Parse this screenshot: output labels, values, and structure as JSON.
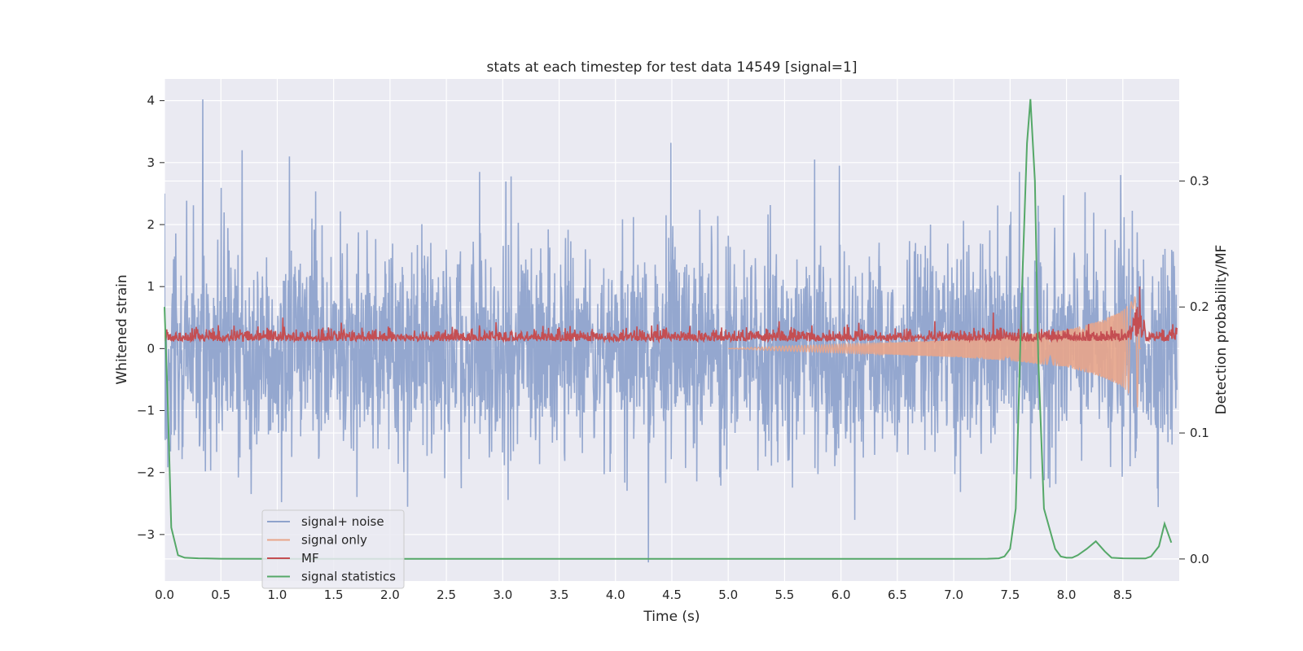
{
  "chart_data": {
    "type": "line",
    "title": "stats at each timestep for test data 14549 [signal=1]",
    "xlabel": "Time (s)",
    "ylabel": "Whitened strain",
    "y2label": "Detection probability/MF",
    "xlim": [
      0,
      9
    ],
    "ylim": [
      -3.75,
      4.35
    ],
    "y2lim": [
      -0.0175,
      0.381
    ],
    "xticks": [
      "0.0",
      "0.5",
      "1.0",
      "1.5",
      "2.0",
      "2.5",
      "3.0",
      "3.5",
      "4.0",
      "4.5",
      "5.0",
      "5.5",
      "6.0",
      "6.5",
      "7.0",
      "7.5",
      "8.0",
      "8.5"
    ],
    "yticks": [
      "−3",
      "−2",
      "−1",
      "0",
      "1",
      "2",
      "3",
      "4"
    ],
    "y2ticks": [
      "0.0",
      "0.1",
      "0.2",
      "0.3"
    ],
    "grid": true,
    "legend_position": "lower-left",
    "series": [
      {
        "name": "signal+ noise",
        "axis": "left",
        "color": "#8fa3cc",
        "description_stats": {
          "approx_max": 4.0,
          "approx_min": -3.45,
          "peak_x": [
            0.34,
            4.3
          ]
        },
        "x": [
          0.0,
          0.34,
          0.69,
          1.11,
          2.8,
          4.3,
          4.5,
          5.78,
          6.0,
          7.6,
          8.5
        ],
        "values": [
          2.5,
          4.02,
          3.2,
          3.1,
          2.85,
          -3.45,
          3.32,
          3.05,
          2.95,
          2.85,
          2.8
        ]
      },
      {
        "name": "signal only",
        "axis": "left",
        "color": "#e8a58a",
        "x": [
          5.0,
          5.5,
          6.0,
          6.5,
          7.0,
          7.5,
          8.0,
          8.3,
          8.5,
          8.6,
          8.63,
          8.65
        ],
        "envelope": [
          0.0,
          0.04,
          0.07,
          0.1,
          0.14,
          0.2,
          0.3,
          0.45,
          0.62,
          0.8,
          0.95,
          0.0
        ]
      },
      {
        "name": "MF",
        "axis": "left",
        "color": "#c44e52",
        "baseline": 0.15,
        "x": [
          1.05,
          7.35,
          7.6,
          8.65
        ],
        "values": [
          0.5,
          0.58,
          0.52,
          1.0
        ]
      },
      {
        "name": "signal statistics",
        "axis": "right",
        "color": "#55a868",
        "x": [
          0.0,
          0.03,
          0.06,
          0.12,
          0.18,
          0.3,
          0.5,
          1.0,
          2.0,
          3.0,
          4.0,
          5.0,
          6.0,
          7.0,
          7.3,
          7.4,
          7.45,
          7.5,
          7.55,
          7.6,
          7.65,
          7.68,
          7.72,
          7.75,
          7.8,
          7.9,
          7.95,
          8.0,
          8.05,
          8.1,
          8.18,
          8.26,
          8.34,
          8.4,
          8.5,
          8.6,
          8.7,
          8.75,
          8.82,
          8.87,
          8.93
        ],
        "values": [
          0.2,
          0.12,
          0.025,
          0.003,
          0.001,
          0.0005,
          0.0002,
          0.0001,
          0.0001,
          0.0001,
          0.0001,
          0.0001,
          0.0001,
          0.0001,
          0.0002,
          0.0005,
          0.002,
          0.008,
          0.04,
          0.2,
          0.33,
          0.365,
          0.3,
          0.16,
          0.04,
          0.008,
          0.002,
          0.001,
          0.001,
          0.003,
          0.008,
          0.014,
          0.006,
          0.001,
          0.0005,
          0.0004,
          0.0004,
          0.002,
          0.01,
          0.028,
          0.013
        ]
      }
    ]
  }
}
